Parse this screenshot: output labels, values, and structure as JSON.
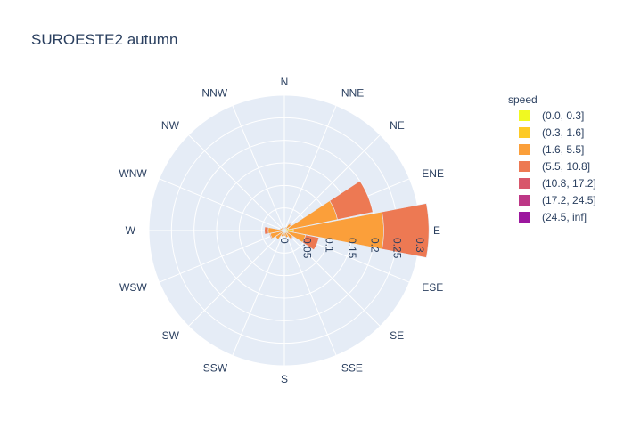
{
  "chart_data": {
    "type": "barpolar",
    "title": "SUROESTE2 autumn",
    "legend_title": "speed",
    "legend_position": "right",
    "directions": [
      "N",
      "NNE",
      "NE",
      "ENE",
      "E",
      "ESE",
      "SE",
      "SSE",
      "S",
      "SSW",
      "SW",
      "WSW",
      "W",
      "WNW",
      "NW",
      "NNW"
    ],
    "radial_range": [
      0,
      0.3
    ],
    "radial_ticks": [
      "0",
      "0.05",
      "0.1",
      "0.15",
      "0.2",
      "0.25",
      "0.3"
    ],
    "radial_tick_values": [
      0,
      0.05,
      0.1,
      0.15,
      0.2,
      0.25,
      0.3
    ],
    "series": [
      {
        "name": "(0.0, 0.3]",
        "color": "#f0f921",
        "values": [
          0,
          0,
          0,
          0,
          0,
          0,
          0,
          0,
          0,
          0,
          0,
          0,
          0,
          0,
          0,
          0
        ]
      },
      {
        "name": "(0.3, 1.6]",
        "color": "#fdca26",
        "values": [
          0.004,
          0.004,
          0.006,
          0.01,
          0.02,
          0.008,
          0.006,
          0.004,
          0.004,
          0.004,
          0.004,
          0.004,
          0.006,
          0.004,
          0.004,
          0.004
        ]
      },
      {
        "name": "(1.6, 5.5]",
        "color": "#fb9f3a",
        "values": [
          0.002,
          0.004,
          0.012,
          0.11,
          0.2,
          0.04,
          0.016,
          0.012,
          0.008,
          0.01,
          0.02,
          0.028,
          0.03,
          0.006,
          0.004,
          0.004
        ]
      },
      {
        "name": "(5.5, 10.8]",
        "color": "#ed7953",
        "values": [
          0,
          0,
          0.002,
          0.08,
          0.1,
          0.03,
          0.002,
          0,
          0,
          0,
          0,
          0.002,
          0.008,
          0,
          0,
          0
        ]
      },
      {
        "name": "(10.8, 17.2]",
        "color": "#d8576b",
        "values": [
          0,
          0,
          0,
          0,
          0,
          0,
          0,
          0,
          0,
          0,
          0,
          0,
          0,
          0,
          0,
          0
        ]
      },
      {
        "name": "(17.2, 24.5]",
        "color": "#bd3786",
        "values": [
          0,
          0,
          0,
          0,
          0,
          0,
          0,
          0,
          0,
          0,
          0,
          0,
          0,
          0,
          0,
          0
        ]
      },
      {
        "name": "(24.5, inf]",
        "color": "#9c179e",
        "values": [
          0,
          0,
          0,
          0,
          0,
          0,
          0,
          0,
          0,
          0,
          0,
          0,
          0,
          0,
          0,
          0
        ]
      }
    ]
  }
}
